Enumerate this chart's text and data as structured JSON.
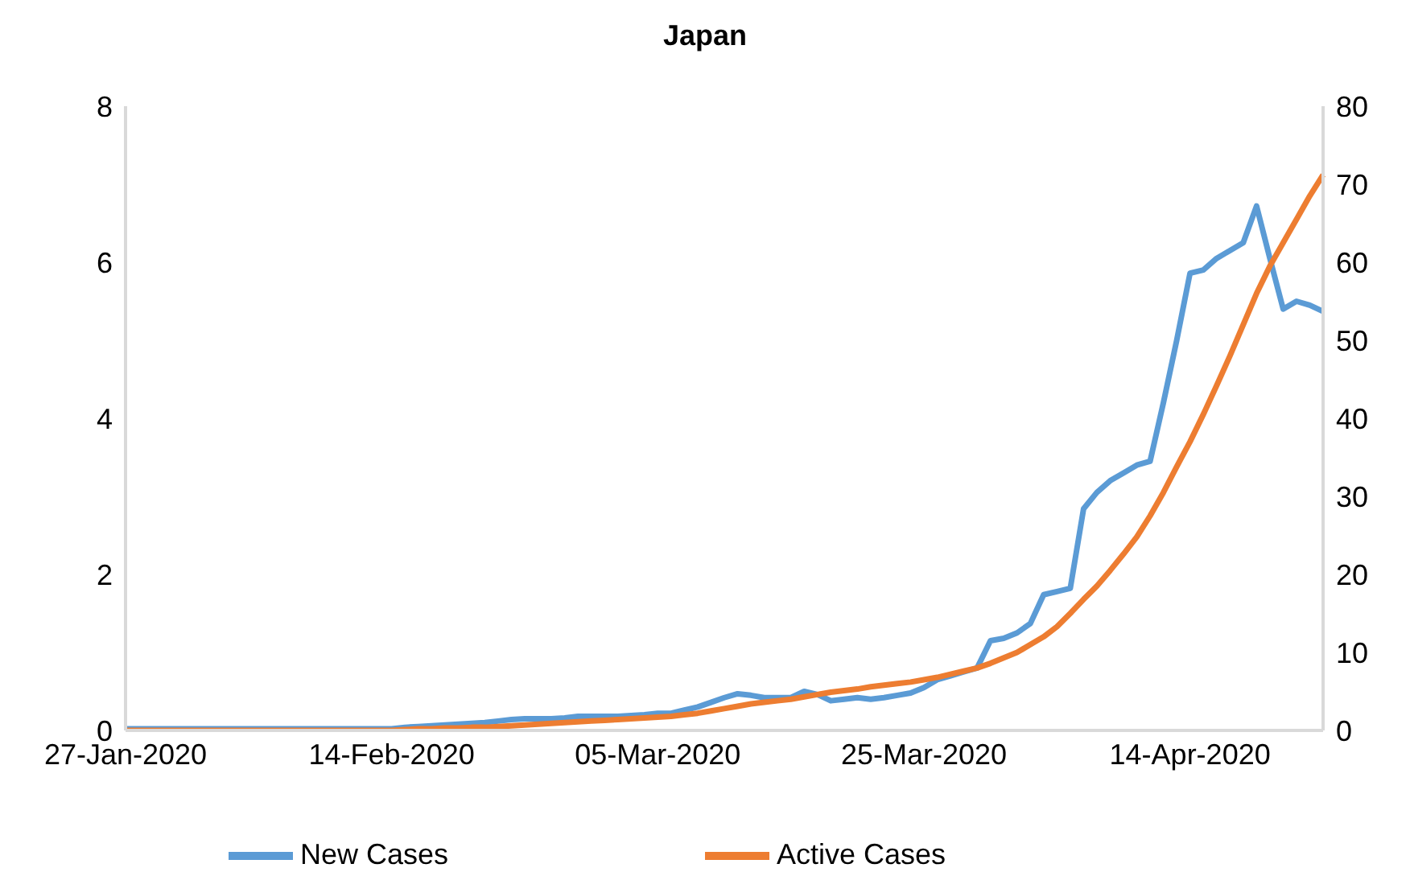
{
  "chart_data": {
    "type": "line",
    "title": "Japan",
    "categories": [
      "27-Jan-2020",
      null,
      null,
      null,
      null,
      null,
      null,
      null,
      null,
      null,
      null,
      null,
      null,
      null,
      null,
      null,
      null,
      null,
      null,
      null,
      "14-Feb-2020",
      null,
      null,
      null,
      null,
      null,
      null,
      null,
      null,
      null,
      null,
      null,
      null,
      null,
      null,
      null,
      null,
      null,
      null,
      null,
      "05-Mar-2020",
      null,
      null,
      null,
      null,
      null,
      null,
      null,
      null,
      null,
      null,
      null,
      null,
      null,
      null,
      null,
      null,
      null,
      null,
      null,
      "25-Mar-2020",
      null,
      null,
      null,
      null,
      null,
      null,
      null,
      null,
      null,
      null,
      null,
      null,
      null,
      null,
      null,
      null,
      null,
      null,
      null,
      "14-Apr-2020",
      null,
      null,
      null,
      null,
      null,
      null,
      null,
      null,
      null,
      null
    ],
    "series": [
      {
        "name": "New Cases",
        "color": "#5b9bd5",
        "values": [
          0.02,
          0.02,
          0.02,
          0.02,
          0.02,
          0.02,
          0.02,
          0.02,
          0.02,
          0.02,
          0.02,
          0.02,
          0.02,
          0.02,
          0.02,
          0.02,
          0.02,
          0.02,
          0.02,
          0.02,
          0.02,
          0.04,
          0.05,
          0.06,
          0.07,
          0.08,
          0.09,
          0.1,
          0.12,
          0.14,
          0.15,
          0.15,
          0.15,
          0.16,
          0.18,
          0.18,
          0.18,
          0.18,
          0.19,
          0.2,
          0.22,
          0.22,
          0.26,
          0.3,
          0.36,
          0.42,
          0.47,
          0.45,
          0.42,
          0.42,
          0.42,
          0.5,
          0.46,
          0.38,
          0.4,
          0.42,
          0.4,
          0.42,
          0.45,
          0.48,
          0.55,
          0.65,
          0.7,
          0.75,
          0.8,
          1.15,
          1.18,
          1.25,
          1.37,
          1.74,
          1.78,
          1.82,
          2.84,
          3.05,
          3.2,
          3.3,
          3.4,
          3.45,
          4.2,
          5.0,
          5.86,
          5.9,
          6.05,
          6.15,
          6.25,
          6.72,
          6.05,
          5.4,
          5.5,
          5.45,
          5.37
        ]
      },
      {
        "name": "Active Cases",
        "color": "#ed7d31",
        "axis": "y2",
        "values": [
          0,
          0,
          0,
          0,
          0,
          0,
          0,
          0,
          0,
          0,
          0,
          0,
          0,
          0,
          0,
          0,
          0,
          0,
          0,
          0,
          0,
          0.1,
          0.2,
          0.2,
          0.3,
          0.3,
          0.4,
          0.4,
          0.5,
          0.6,
          0.7,
          0.8,
          0.9,
          1.0,
          1.1,
          1.2,
          1.3,
          1.4,
          1.5,
          1.6,
          1.7,
          1.8,
          2.0,
          2.2,
          2.5,
          2.8,
          3.1,
          3.4,
          3.6,
          3.8,
          4.0,
          4.3,
          4.6,
          4.9,
          5.1,
          5.3,
          5.6,
          5.8,
          6.0,
          6.2,
          6.5,
          6.8,
          7.2,
          7.6,
          8.0,
          8.6,
          9.3,
          10.0,
          11.0,
          12.0,
          13.3,
          15.0,
          16.8,
          18.5,
          20.5,
          22.6,
          24.8,
          27.5,
          30.5,
          33.8,
          37.0,
          40.5,
          44.2,
          48.0,
          52.0,
          56.0,
          59.5,
          62.5,
          65.5,
          68.5,
          71.2
        ]
      }
    ],
    "ylim": [
      0,
      8
    ],
    "yticks": [
      0,
      2,
      4,
      6,
      8
    ],
    "y2lim": [
      0,
      80
    ],
    "y2ticks": [
      0,
      10,
      20,
      30,
      40,
      50,
      60,
      70,
      80
    ],
    "grid": false,
    "legend": "bottom",
    "marker": "none",
    "line_style": "solid"
  }
}
